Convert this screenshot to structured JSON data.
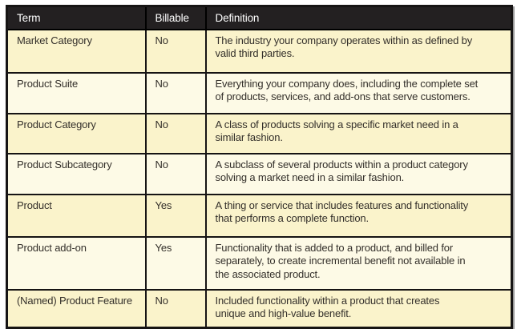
{
  "table": {
    "columns": [
      {
        "label": "Term"
      },
      {
        "label": "Billable"
      },
      {
        "label": "Definition"
      }
    ],
    "rows": [
      {
        "term": "Market Category",
        "billable": "No",
        "definition": "The industry your company operates within as defined by\nvalid third parties."
      },
      {
        "term": "Product Suite",
        "billable": "No",
        "definition": "Everything your company does, including the complete set\nof products, services, and add-ons that serve customers."
      },
      {
        "term": "Product Category",
        "billable": "No",
        "definition": "A class of products solving a specific market need in a\nsimilar fashion."
      },
      {
        "term": "Product Subcategory",
        "billable": "No",
        "definition": "A subclass of several products within a product category\nsolving a market need in a similar fashion."
      },
      {
        "term": "Product",
        "billable": "Yes",
        "definition": "A thing or service that includes features and functionality\nthat performs a complete function."
      },
      {
        "term": "Product add-on",
        "billable": "Yes",
        "definition": "Functionality that is added to a product, and billed for\nseparately, to create incremental benefit not available in\nthe associated product."
      },
      {
        "term": "(Named) Product Feature",
        "billable": "No",
        "definition": "Included functionality within a product that creates\nunique and high-value benefit."
      }
    ]
  },
  "colors": {
    "header_bg": "#232021",
    "header_text": "#ffffff",
    "row_odd_bg": "#faf3cb",
    "row_even_bg": "#fdfae6",
    "border": "#161414",
    "text": "#332f2a",
    "shadow": "#9a9a9a"
  }
}
